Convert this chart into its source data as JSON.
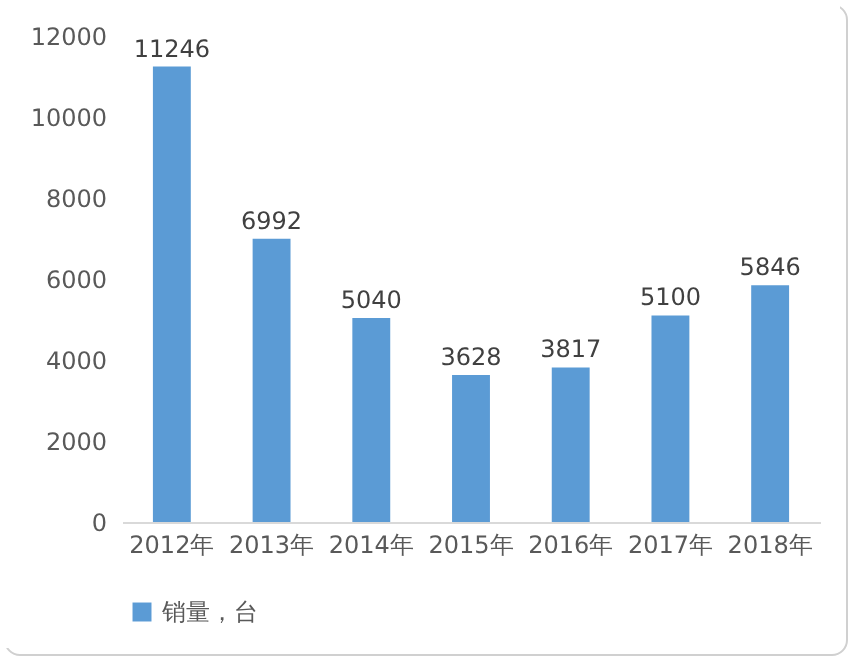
{
  "chart_data": {
    "type": "bar",
    "categories": [
      "2012年",
      "2013年",
      "2014年",
      "2015年",
      "2016年",
      "2017年",
      "2018年"
    ],
    "series": [
      {
        "name": "销量，台",
        "color": "#5b9bd5",
        "values": [
          11246,
          6992,
          5040,
          3628,
          3817,
          5100,
          5846
        ]
      }
    ],
    "ylim": [
      0,
      12000
    ],
    "yticks": [
      0,
      2000,
      4000,
      6000,
      8000,
      10000,
      12000
    ],
    "grid": false,
    "legend": "bottom",
    "data_labels": true
  }
}
